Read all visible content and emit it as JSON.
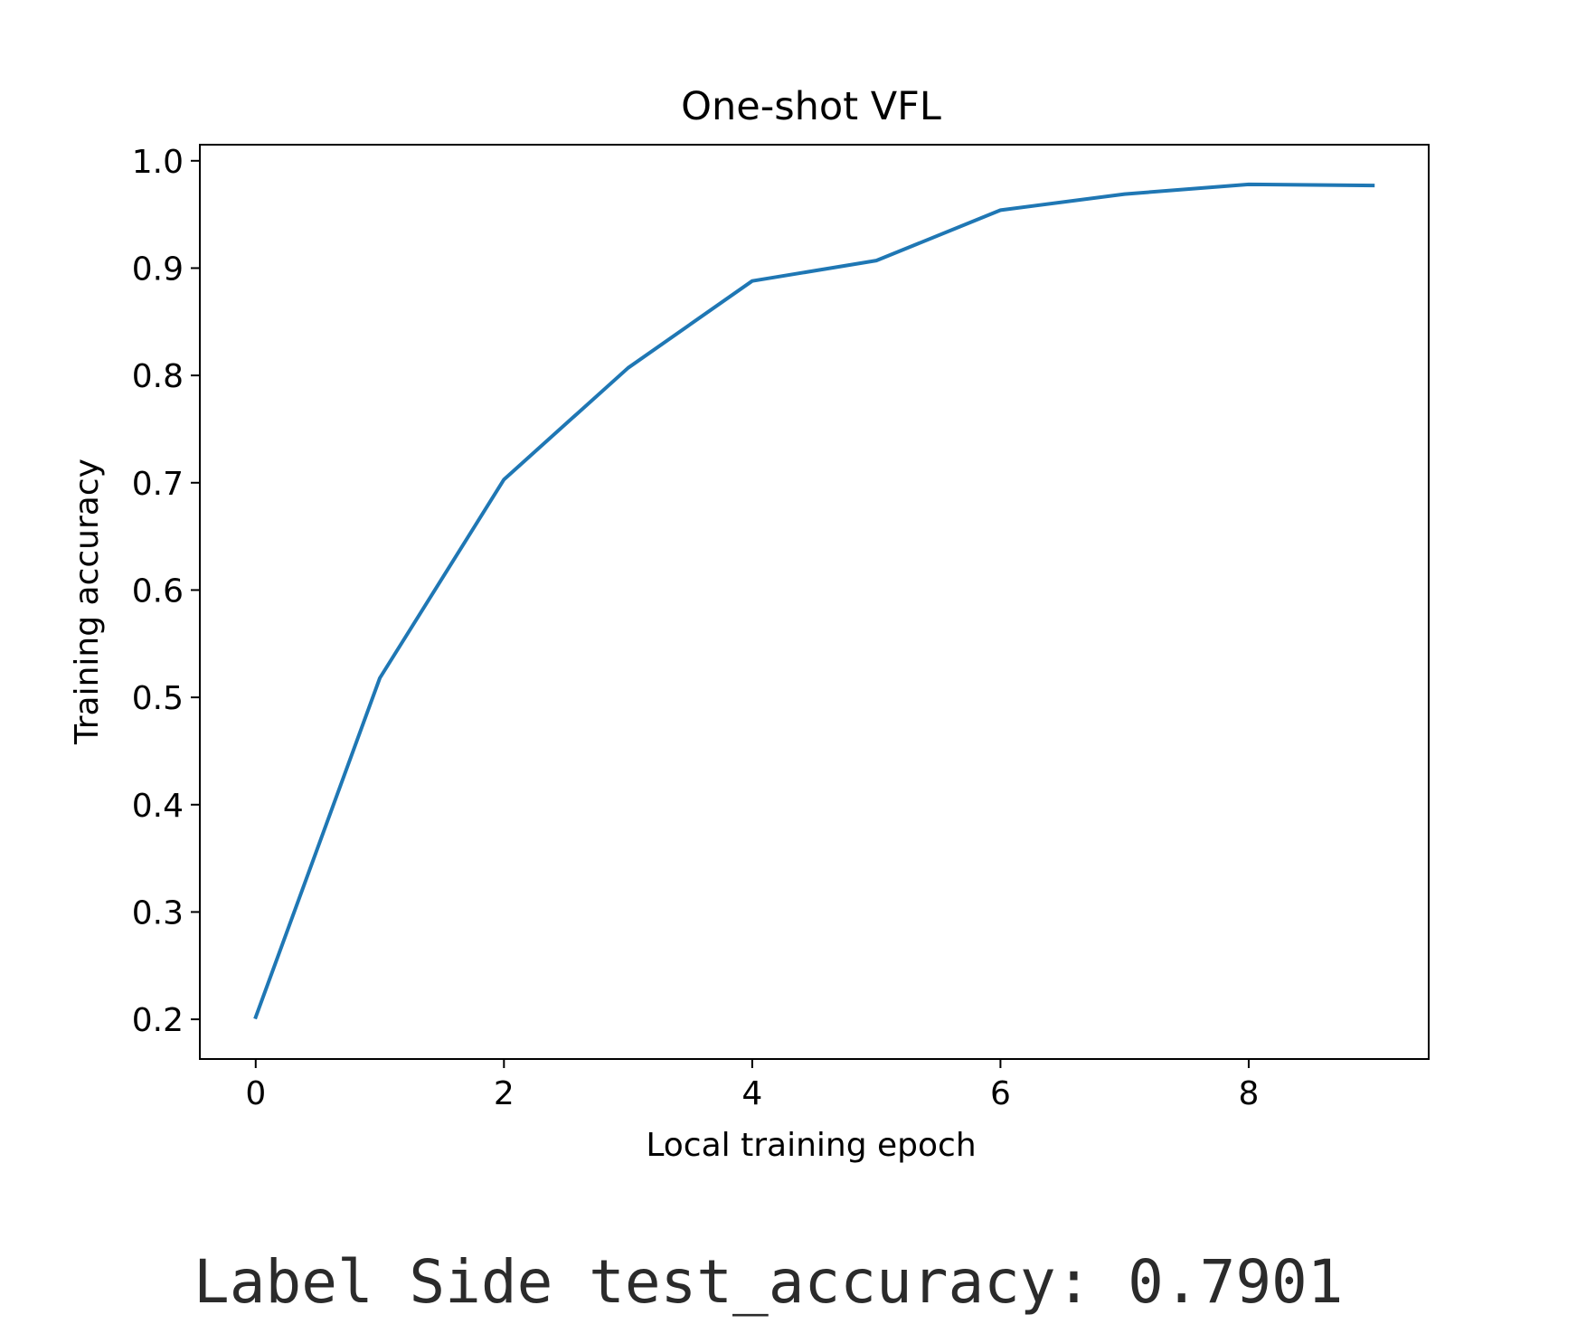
{
  "chart_data": {
    "type": "line",
    "title": "One-shot VFL",
    "xlabel": "Local training epoch",
    "ylabel": "Training accuracy",
    "x": [
      0,
      1,
      2,
      3,
      4,
      5,
      6,
      7,
      8,
      9
    ],
    "series": [
      {
        "values": [
          0.202,
          0.518,
          0.703,
          0.807,
          0.888,
          0.907,
          0.954,
          0.969,
          0.978,
          0.977
        ],
        "color": "#1f77b4"
      }
    ],
    "xlim": [
      -0.45,
      9.45
    ],
    "ylim": [
      0.163,
      1.015
    ],
    "xticks": [
      0,
      2,
      4,
      6,
      8
    ],
    "xtick_labels": [
      "0",
      "2",
      "4",
      "6",
      "8"
    ],
    "yticks": [
      0.2,
      0.3,
      0.4,
      0.5,
      0.6,
      0.7,
      0.8,
      0.9,
      1.0
    ],
    "ytick_labels": [
      "0.2",
      "0.3",
      "0.4",
      "0.5",
      "0.6",
      "0.7",
      "0.8",
      "0.9",
      "1.0"
    ],
    "grid": false,
    "legend": "none"
  },
  "output": {
    "result_text": "Label Side test_accuracy: 0.7901"
  }
}
